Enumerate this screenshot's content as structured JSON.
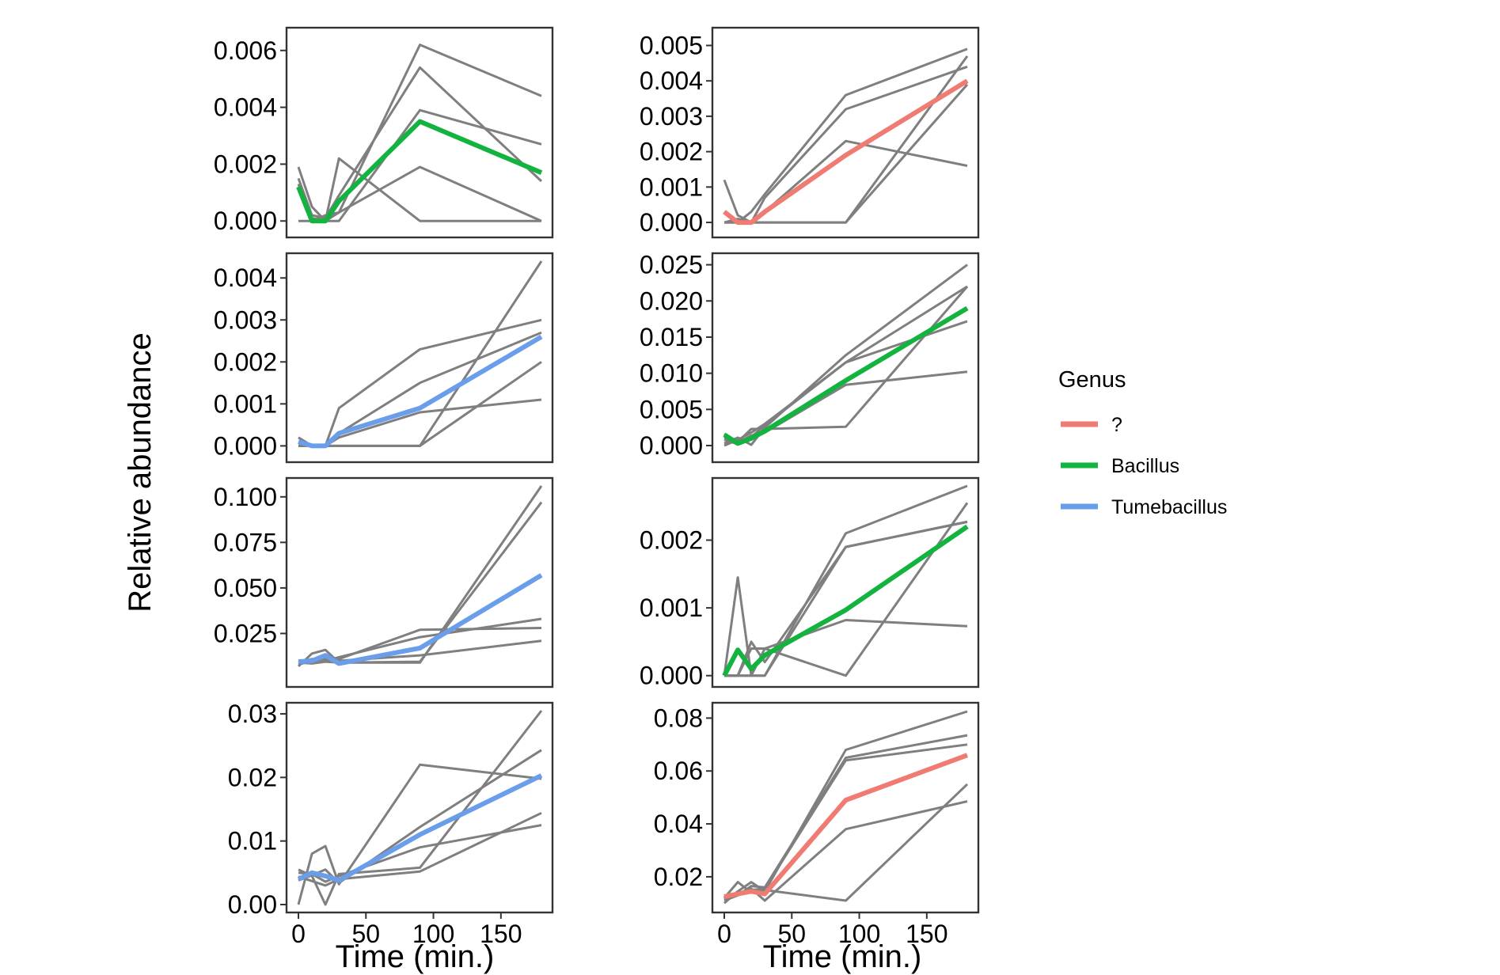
{
  "chart_data": {
    "type": "line",
    "layout": "faceted grid, 4 rows x 2 columns",
    "ylabel": "Relative abundance",
    "xlabel": "Time (min.)",
    "x_ticks": [
      0,
      50,
      100,
      150
    ],
    "x_range": [
      0,
      180
    ],
    "x": [
      0,
      10,
      20,
      30,
      90,
      180
    ],
    "legend": {
      "title": "Genus",
      "position": "right",
      "entries": [
        {
          "label": "?",
          "color": "#F07B72"
        },
        {
          "label": "Bacillus",
          "color": "#12B33F"
        },
        {
          "label": "Tumebacillus",
          "color": "#6A9EEA"
        }
      ]
    },
    "replicate_color": "#7f7f7f",
    "panels": [
      {
        "row": 0,
        "col": 0,
        "genus": "Bacillus",
        "ylim": [
          -0.0003,
          0.0063
        ],
        "y_ticks": [
          0,
          0.002,
          0.004,
          0.006
        ],
        "y_tick_labels": [
          "0.000",
          "0.002",
          "0.004",
          "0.006"
        ],
        "mean": [
          0.0012,
          0.0,
          0.0,
          0.0007,
          0.0035,
          0.0017
        ],
        "replicates": [
          [
            0.0019,
            0.0005,
            0.0,
            0.0022,
            0.0,
            0.0
          ],
          [
            0.0013,
            0.0,
            0.0002,
            0.0003,
            0.0062,
            0.0044
          ],
          [
            0.0015,
            0.0002,
            0.0001,
            0.0009,
            0.0054,
            0.0014
          ],
          [
            0.0011,
            0.0001,
            0.0,
            0.0,
            0.0039,
            0.0027
          ],
          [
            0.0,
            0.0,
            0.0,
            0.0003,
            0.0019,
            0.0
          ]
        ]
      },
      {
        "row": 0,
        "col": 1,
        "genus": "?",
        "ylim": [
          -0.0002,
          0.0051
        ],
        "y_ticks": [
          0,
          0.001,
          0.002,
          0.003,
          0.004,
          0.005
        ],
        "y_tick_labels": [
          "0.000",
          "0.001",
          "0.002",
          "0.003",
          "0.004",
          "0.005"
        ],
        "mean": [
          0.0003,
          0.0,
          0.0,
          0.0003,
          0.0019,
          0.004
        ],
        "replicates": [
          [
            0.0012,
            0.0002,
            0.0,
            0.0,
            0.0,
            0.0047
          ],
          [
            0.0003,
            0.0,
            0.0003,
            0.0008,
            0.0036,
            0.0049
          ],
          [
            0.0,
            0.0001,
            0.0,
            0.0007,
            0.0032,
            0.0044
          ],
          [
            0.0,
            0.0,
            0.0,
            0.0003,
            0.0023,
            0.0016
          ],
          [
            0.0,
            0.0,
            0.0,
            0.0,
            0.0,
            0.0039
          ]
        ]
      },
      {
        "row": 1,
        "col": 0,
        "genus": "Tumebacillus",
        "ylim": [
          -0.0002,
          0.0044
        ],
        "y_ticks": [
          0,
          0.001,
          0.002,
          0.003,
          0.004
        ],
        "y_tick_labels": [
          "0.000",
          "0.001",
          "0.002",
          "0.003",
          "0.004"
        ],
        "mean": [
          0.0001,
          0.0,
          0.0,
          0.0003,
          0.0009,
          0.0026
        ],
        "replicates": [
          [
            0.0002,
            0.0,
            0.0,
            0.0009,
            0.0023,
            0.003
          ],
          [
            0.0,
            0.0,
            0.0,
            0.0003,
            0.0015,
            0.0027
          ],
          [
            0.0,
            0.0,
            0.0,
            0.0,
            0.0,
            0.0044
          ],
          [
            0.0,
            0.0,
            0.0,
            0.0002,
            0.0008,
            0.0011
          ],
          [
            0.0,
            0.0,
            0.0,
            0.0,
            0.0,
            0.002
          ]
        ]
      },
      {
        "row": 1,
        "col": 1,
        "genus": "Bacillus",
        "ylim": [
          -0.0012,
          0.0255
        ],
        "y_ticks": [
          0,
          0.005,
          0.01,
          0.015,
          0.02,
          0.025
        ],
        "y_tick_labels": [
          "0.000",
          "0.005",
          "0.010",
          "0.015",
          "0.020",
          "0.025"
        ],
        "mean": [
          0.0015,
          0.0003,
          0.001,
          0.002,
          0.009,
          0.019
        ],
        "replicates": [
          [
            0.0016,
            0.0005,
            0.0023,
            0.0023,
            0.0026,
            0.022
          ],
          [
            0.0003,
            0.0011,
            0.0001,
            0.0025,
            0.0125,
            0.025
          ],
          [
            0.0008,
            0.0002,
            0.0012,
            0.0028,
            0.0115,
            0.022
          ],
          [
            0.0011,
            0.0004,
            0.0014,
            0.0018,
            0.0084,
            0.0102
          ],
          [
            0.0,
            0.0008,
            0.0018,
            0.003,
            0.0115,
            0.0172
          ]
        ]
      },
      {
        "row": 2,
        "col": 0,
        "genus": "Tumebacillus",
        "ylim": [
          0.0,
          0.106
        ],
        "y_ticks": [
          0.025,
          0.05,
          0.075,
          0.1
        ],
        "y_tick_labels": [
          "0.025",
          "0.050",
          "0.075",
          "0.100"
        ],
        "mean": [
          0.0095,
          0.01,
          0.013,
          0.0085,
          0.017,
          0.057
        ],
        "replicates": [
          [
            0.007,
            0.014,
            0.016,
            0.009,
            0.009,
            0.106
          ],
          [
            0.009,
            0.0085,
            0.0095,
            0.009,
            0.0095,
            0.097
          ],
          [
            0.008,
            0.01,
            0.012,
            0.011,
            0.027,
            0.028
          ],
          [
            0.009,
            0.011,
            0.01,
            0.012,
            0.023,
            0.033
          ],
          [
            0.009,
            0.0095,
            0.011,
            0.01,
            0.013,
            0.021
          ]
        ]
      },
      {
        "row": 2,
        "col": 1,
        "genus": "Bacillus",
        "ylim": [
          -5e-05,
          0.0028
        ],
        "y_ticks": [
          0,
          0.001,
          0.002
        ],
        "y_tick_labels": [
          "0.000",
          "0.001",
          "0.002"
        ],
        "mean": [
          0.0,
          0.00038,
          0.0001,
          0.0003,
          0.00097,
          0.0022
        ],
        "replicates": [
          [
            0.0,
            0.0,
            0.0,
            0.0,
            0.0021,
            0.0028
          ],
          [
            0.0,
            0.00145,
            0.0,
            0.0004,
            0.0,
            0.00255
          ],
          [
            0.0,
            0.0,
            0.0005,
            0.0002,
            0.0019,
            0.00227
          ],
          [
            0.0,
            0.0,
            0.0004,
            0.0004,
            0.00082,
            0.00073
          ],
          [
            0.0,
            0.0,
            0.0,
            0.0,
            0.0019,
            0.00227
          ]
        ]
      },
      {
        "row": 3,
        "col": 0,
        "genus": "Tumebacillus",
        "ylim": [
          0.0,
          0.0305
        ],
        "y_ticks": [
          0,
          0.01,
          0.02,
          0.03
        ],
        "y_tick_labels": [
          "0.00",
          "0.01",
          "0.02",
          "0.03"
        ],
        "mean": [
          0.004,
          0.005,
          0.0045,
          0.0038,
          0.011,
          0.0203
        ],
        "replicates": [
          [
            0.0,
            0.008,
            0.0092,
            0.0032,
            0.022,
            0.0198
          ],
          [
            0.0055,
            0.0045,
            0.0,
            0.0048,
            0.0058,
            0.0305
          ],
          [
            0.0038,
            0.0046,
            0.0055,
            0.0034,
            0.0122,
            0.0243
          ],
          [
            0.0044,
            0.0037,
            0.003,
            0.004,
            0.0052,
            0.0144
          ],
          [
            0.005,
            0.0048,
            0.0036,
            0.0045,
            0.009,
            0.0125
          ]
        ]
      },
      {
        "row": 3,
        "col": 1,
        "genus": "?",
        "ylim": [
          0.0095,
          0.0828
        ],
        "y_ticks": [
          0.02,
          0.04,
          0.06,
          0.08
        ],
        "y_tick_labels": [
          "0.02",
          "0.04",
          "0.06",
          "0.08"
        ],
        "mean": [
          0.0125,
          0.0135,
          0.0145,
          0.0135,
          0.049,
          0.066
        ],
        "replicates": [
          [
            0.01,
            0.0145,
            0.018,
            0.0145,
            0.068,
            0.0825
          ],
          [
            0.0115,
            0.0135,
            0.0155,
            0.011,
            0.038,
            0.0485
          ],
          [
            0.012,
            0.018,
            0.014,
            0.015,
            0.011,
            0.055
          ],
          [
            0.011,
            0.013,
            0.0165,
            0.016,
            0.065,
            0.0735
          ],
          [
            0.0125,
            0.014,
            0.015,
            0.0155,
            0.064,
            0.07
          ]
        ]
      }
    ]
  }
}
